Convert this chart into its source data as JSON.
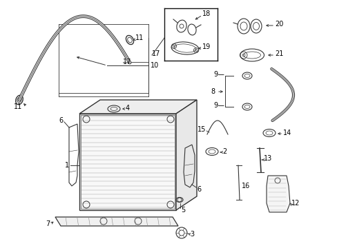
{
  "bg_color": "#ffffff",
  "fig_width": 4.89,
  "fig_height": 3.6,
  "dpi": 100,
  "lc": "#333333",
  "tc": "#000000",
  "fs": 7.0
}
